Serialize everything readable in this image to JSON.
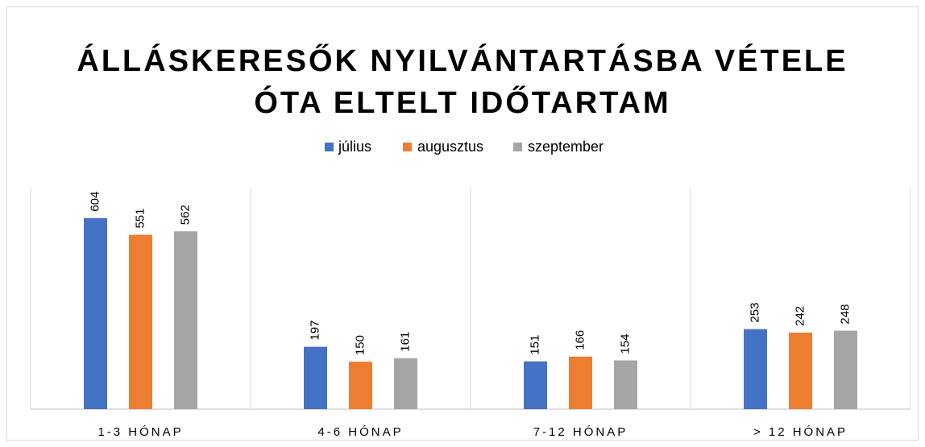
{
  "chart_data": {
    "type": "bar",
    "title": [
      "ÁLLÁSKERESŐK NYILVÁNTARTÁSBA VÉTELE",
      "ÓTA ELTELT IDŐTARTAM"
    ],
    "categories": [
      "1-3 HÓNAP",
      "4-6 HÓNAP",
      "7-12 HÓNAP",
      "> 12 HÓNAP"
    ],
    "series": [
      {
        "name": "július",
        "color": "#4472c4",
        "values": [
          604,
          197,
          151,
          253
        ]
      },
      {
        "name": "augusztus",
        "color": "#ed7d31",
        "values": [
          551,
          150,
          166,
          242
        ]
      },
      {
        "name": "szeptember",
        "color": "#a5a5a5",
        "values": [
          562,
          161,
          154,
          248
        ]
      }
    ],
    "ylim": [
      0,
      700
    ],
    "legend": "top"
  }
}
